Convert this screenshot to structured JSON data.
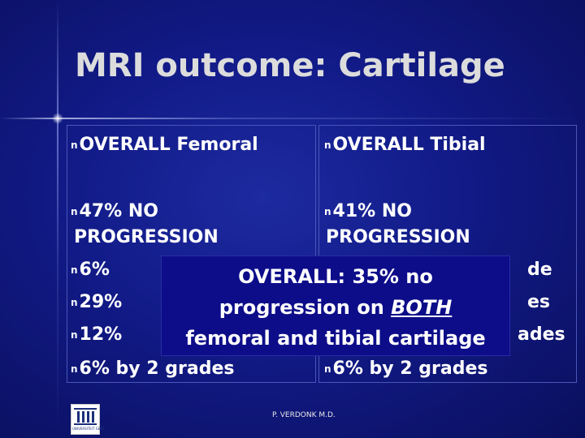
{
  "slide": {
    "title": "MRI outcome: Cartilage",
    "bullet_glyph": "n",
    "colors": {
      "background": "#111a86",
      "title": "#dcdcdc",
      "text": "#ffffff",
      "overlay_box": "#0d0d8a"
    }
  },
  "left_column": {
    "heading": "OVERALL Femoral",
    "line_47": "47% NO",
    "line_progression": "PROGRESSION",
    "line_6_partial": "6%",
    "line_29_partial": "29%",
    "line_12_partial": "12%",
    "line_6_by_2": "6% by 2 grades"
  },
  "right_column": {
    "heading": "OVERALL Tibial",
    "line_41": "41% NO",
    "line_progression": "PROGRESSION",
    "line_grade_tail": "de",
    "line_grades_tail": "es",
    "line_grades_tail2": "ades",
    "line_6_by_2": "6% by 2 grades"
  },
  "overlay": {
    "line1": "OVERALL: 35% no",
    "line2_before": "progression on ",
    "line2_emphasis": "BOTH",
    "line3": "femoral and tibial cartilage"
  },
  "logo": {
    "text": "UNIVERSITEIT GENT",
    "icon": "university-ghent-logo-icon"
  },
  "footer": {
    "author": "P. VERDONK M.D."
  }
}
